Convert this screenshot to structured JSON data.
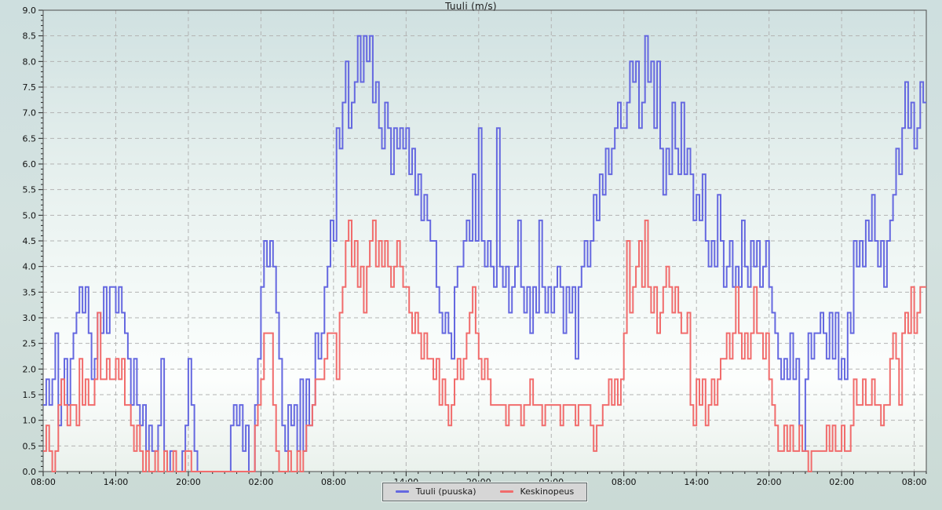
{
  "title": "Tuuli (m/s)",
  "legend": {
    "items": [
      {
        "label": "Tuuli (puuska)",
        "color": "#6568e0"
      },
      {
        "label": "Keskinopeus",
        "color": "#f16c6c"
      }
    ]
  },
  "colors": {
    "gust_line": "#6568e0",
    "average_line": "#f16c6c",
    "grid": "#b3b3b3",
    "frame": "#4d4d4d",
    "tick": "#222222",
    "label_text": "#111111",
    "plot_gradient_top": "#d0e1e1",
    "plot_gradient_mid": "#f3f9f7",
    "plot_gradient_low": "#fcfefd",
    "plot_gradient_bottom": "#eaf1ec",
    "page_background": "#cedfdf",
    "legend_background": "#d6d6d6"
  },
  "chart_data": {
    "type": "line",
    "step": true,
    "title": "Tuuli (m/s)",
    "xlabel": "",
    "ylabel": "",
    "ylim": [
      0,
      9
    ],
    "y_tick_step": 0.5,
    "y_minor_step": 0.1,
    "grid": "dashed, on every major tick (horizontal every 0.5 m/s, vertical every 6 h)",
    "legend_position": "bottom-center",
    "x_start_label": "08:00",
    "x_total_hours": 73,
    "x_tick_every_hours": 6,
    "x_minor_every_hours": 1,
    "sample_interval_minutes": 15,
    "y_tick_labels": [
      "0.0",
      "0.5",
      "1.0",
      "1.5",
      "2.0",
      "2.5",
      "3.0",
      "3.5",
      "4.0",
      "4.5",
      "5.0",
      "5.5",
      "6.0",
      "6.5",
      "7.0",
      "7.5",
      "8.0",
      "8.5",
      "9.0"
    ],
    "x_tick_labels": [
      "08:00",
      "14:00",
      "20:00",
      "02:00",
      "08:00",
      "14:00",
      "20:00",
      "02:00",
      "08:00",
      "14:00",
      "20:00",
      "02:00",
      "08:00"
    ],
    "series": [
      {
        "name": "Tuuli (puuska)",
        "color": "#6568e0",
        "values": [
          1.3,
          1.8,
          1.3,
          1.8,
          2.7,
          0.9,
          1.8,
          2.2,
          1.3,
          2.2,
          2.7,
          3.1,
          3.6,
          3.1,
          3.6,
          2.7,
          1.8,
          2.2,
          3.1,
          2.7,
          3.6,
          2.7,
          3.6,
          3.6,
          3.1,
          3.6,
          3.1,
          2.7,
          2.2,
          1.3,
          2.2,
          1.3,
          0.9,
          1.3,
          0.4,
          0.9,
          0.4,
          0.4,
          0.9,
          2.2,
          0.4,
          0.0,
          0.4,
          0.4,
          0.0,
          0.0,
          0.4,
          0.9,
          2.2,
          1.3,
          0.4,
          0.0,
          0.0,
          0.0,
          0.0,
          0.0,
          0.0,
          0.0,
          0.0,
          0.0,
          0.0,
          0.0,
          0.9,
          1.3,
          0.9,
          1.3,
          0.4,
          0.9,
          0.0,
          0.0,
          1.3,
          2.2,
          3.6,
          4.5,
          4.0,
          4.5,
          4.0,
          3.1,
          2.2,
          0.9,
          0.4,
          1.3,
          0.9,
          1.3,
          0.4,
          1.8,
          0.4,
          1.8,
          0.9,
          1.3,
          2.7,
          2.2,
          2.7,
          3.6,
          4.0,
          4.9,
          4.5,
          6.7,
          6.3,
          7.2,
          8.0,
          6.7,
          7.2,
          7.6,
          8.5,
          7.6,
          8.5,
          8.0,
          8.5,
          7.2,
          7.6,
          6.7,
          6.3,
          7.2,
          6.7,
          5.8,
          6.7,
          6.3,
          6.7,
          6.3,
          6.7,
          5.8,
          6.3,
          5.4,
          5.8,
          4.9,
          5.4,
          4.9,
          4.5,
          4.5,
          3.6,
          3.1,
          2.7,
          3.1,
          2.7,
          2.2,
          3.6,
          4.0,
          4.0,
          4.5,
          4.9,
          4.5,
          5.8,
          4.5,
          6.7,
          4.5,
          4.0,
          4.5,
          4.0,
          3.6,
          6.7,
          4.0,
          3.6,
          4.0,
          3.1,
          3.6,
          4.0,
          4.9,
          3.6,
          3.1,
          3.6,
          2.7,
          3.6,
          3.1,
          4.9,
          3.6,
          3.1,
          3.6,
          3.1,
          3.6,
          4.0,
          3.6,
          2.7,
          3.6,
          3.1,
          3.6,
          2.2,
          3.6,
          4.0,
          4.5,
          4.0,
          4.5,
          5.4,
          4.9,
          5.8,
          5.4,
          6.3,
          5.8,
          6.3,
          6.7,
          7.2,
          6.7,
          6.7,
          7.2,
          8.0,
          7.6,
          8.0,
          6.7,
          7.2,
          8.5,
          7.6,
          8.0,
          6.7,
          8.0,
          6.3,
          5.4,
          6.3,
          5.8,
          7.2,
          6.3,
          5.8,
          7.2,
          5.8,
          6.3,
          5.8,
          4.9,
          5.4,
          4.9,
          5.8,
          4.5,
          4.0,
          4.5,
          4.0,
          5.4,
          4.5,
          3.6,
          4.0,
          4.5,
          3.6,
          4.0,
          3.6,
          4.9,
          4.0,
          3.6,
          4.5,
          4.0,
          4.5,
          3.6,
          4.0,
          4.5,
          3.6,
          3.1,
          2.7,
          2.2,
          1.8,
          2.2,
          1.8,
          2.7,
          1.8,
          2.2,
          0.9,
          0.4,
          1.8,
          2.7,
          2.2,
          2.7,
          2.7,
          3.1,
          2.7,
          2.2,
          3.1,
          2.2,
          3.1,
          1.8,
          2.2,
          1.8,
          3.1,
          2.7,
          4.5,
          4.0,
          4.5,
          4.0,
          4.9,
          4.5,
          5.4,
          4.5,
          4.0,
          4.5,
          3.6,
          4.5,
          4.9,
          5.4,
          6.3,
          5.8,
          6.7,
          7.6,
          6.7,
          7.2,
          6.3,
          6.7,
          7.6,
          7.2
        ]
      },
      {
        "name": "Keskinopeus",
        "color": "#f16c6c",
        "values": [
          0.4,
          0.9,
          0.4,
          0.0,
          0.4,
          1.3,
          1.8,
          1.3,
          0.9,
          1.3,
          1.3,
          0.9,
          2.2,
          1.3,
          1.8,
          1.3,
          1.3,
          1.8,
          3.1,
          1.8,
          1.8,
          2.2,
          1.8,
          1.8,
          2.2,
          1.8,
          2.2,
          1.3,
          1.3,
          0.9,
          0.4,
          0.9,
          0.4,
          0.0,
          0.4,
          0.0,
          0.0,
          0.4,
          0.0,
          0.0,
          0.4,
          0.0,
          0.0,
          0.4,
          0.0,
          0.0,
          0.0,
          0.4,
          0.4,
          0.0,
          0.0,
          0.0,
          0.0,
          0.0,
          0.0,
          0.0,
          0.0,
          0.0,
          0.0,
          0.0,
          0.0,
          0.0,
          0.0,
          0.0,
          0.0,
          0.0,
          0.0,
          0.0,
          0.0,
          0.0,
          0.9,
          1.3,
          1.8,
          2.7,
          2.7,
          2.7,
          1.3,
          0.4,
          0.0,
          0.0,
          0.0,
          0.4,
          0.0,
          0.0,
          0.4,
          0.0,
          0.4,
          0.9,
          0.9,
          1.3,
          1.8,
          1.8,
          1.8,
          2.2,
          2.7,
          2.7,
          2.7,
          1.8,
          3.1,
          3.6,
          4.5,
          4.9,
          4.0,
          4.5,
          3.6,
          4.0,
          3.1,
          4.0,
          4.5,
          4.9,
          4.0,
          4.5,
          4.0,
          4.5,
          4.0,
          3.6,
          4.0,
          4.5,
          4.0,
          3.6,
          3.6,
          3.1,
          2.7,
          3.1,
          2.7,
          2.2,
          2.7,
          2.2,
          2.2,
          1.8,
          2.2,
          1.3,
          1.8,
          1.3,
          0.9,
          1.3,
          1.8,
          2.2,
          1.8,
          2.2,
          2.7,
          3.1,
          3.6,
          2.7,
          2.2,
          1.8,
          2.2,
          1.8,
          1.3,
          1.3,
          1.3,
          1.3,
          1.3,
          0.9,
          1.3,
          1.3,
          1.3,
          1.3,
          0.9,
          1.3,
          1.3,
          1.8,
          1.3,
          1.3,
          1.3,
          0.9,
          1.3,
          1.3,
          1.3,
          1.3,
          1.3,
          0.9,
          1.3,
          1.3,
          1.3,
          1.3,
          0.9,
          1.3,
          1.3,
          1.3,
          1.3,
          0.9,
          0.4,
          0.9,
          0.9,
          1.3,
          1.3,
          1.8,
          1.3,
          1.8,
          1.3,
          1.8,
          2.7,
          4.5,
          3.1,
          3.6,
          4.0,
          4.5,
          3.6,
          4.9,
          3.6,
          3.1,
          3.6,
          2.7,
          3.1,
          3.6,
          4.0,
          3.6,
          3.1,
          3.6,
          3.1,
          2.7,
          2.7,
          3.1,
          1.3,
          0.9,
          1.8,
          1.3,
          1.8,
          0.9,
          1.3,
          1.8,
          1.3,
          1.8,
          2.2,
          2.2,
          2.7,
          2.2,
          2.7,
          3.6,
          2.7,
          2.2,
          2.7,
          2.2,
          2.7,
          3.6,
          2.7,
          2.7,
          2.2,
          2.7,
          1.8,
          1.3,
          0.9,
          0.4,
          0.4,
          0.9,
          0.4,
          0.9,
          0.4,
          0.4,
          0.9,
          0.4,
          0.4,
          0.0,
          0.4,
          0.4,
          0.4,
          0.4,
          0.4,
          0.9,
          0.4,
          0.9,
          0.4,
          0.4,
          0.9,
          0.4,
          0.4,
          0.9,
          1.8,
          1.3,
          1.3,
          1.8,
          1.3,
          1.3,
          1.8,
          1.3,
          1.3,
          0.9,
          1.3,
          1.3,
          2.2,
          2.7,
          2.2,
          1.3,
          2.7,
          3.1,
          2.7,
          3.6,
          2.7,
          3.1,
          3.6,
          3.6
        ]
      }
    ]
  }
}
